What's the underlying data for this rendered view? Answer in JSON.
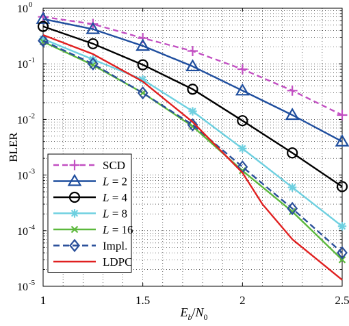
{
  "chart_data": {
    "type": "line",
    "xlabel": {
      "main": "E",
      "sub1": "b",
      "sep": "/N",
      "sub2": "0"
    },
    "ylabel": "BLER",
    "x_ticks": [
      "1",
      "1.5",
      "2",
      "2.5"
    ],
    "y_ticks": [
      {
        "base": "10",
        "exp": "0"
      },
      {
        "base": "10",
        "exp": "-1"
      },
      {
        "base": "10",
        "exp": "-2"
      },
      {
        "base": "10",
        "exp": "-3"
      },
      {
        "base": "10",
        "exp": "-4"
      },
      {
        "base": "10",
        "exp": "-5"
      }
    ],
    "xlim": [
      1,
      2.5
    ],
    "ylim": [
      1e-05,
      1
    ],
    "y_scale": "log",
    "grid": true,
    "legend_position": "bottom-left",
    "series": [
      {
        "name": "SCD",
        "color": "#c24fc2",
        "dash": "8,5",
        "marker": "plus",
        "x": [
          1,
          1.25,
          1.5,
          1.75,
          2,
          2.25,
          2.5
        ],
        "y": [
          0.7,
          0.52,
          0.29,
          0.17,
          0.08,
          0.033,
          0.012
        ]
      },
      {
        "name": "L = 2",
        "italic_part": "L",
        "rest": " = 2",
        "color": "#1f4e9e",
        "dash": "",
        "marker": "triangle",
        "x": [
          1,
          1.25,
          1.5,
          1.75,
          2,
          2.25,
          2.5
        ],
        "y": [
          0.64,
          0.42,
          0.21,
          0.09,
          0.033,
          0.012,
          0.004
        ]
      },
      {
        "name": "L = 4",
        "italic_part": "L",
        "rest": " = 4",
        "color": "#000000",
        "dash": "",
        "marker": "circle",
        "x": [
          1,
          1.25,
          1.5,
          1.75,
          2,
          2.25,
          2.5
        ],
        "y": [
          0.47,
          0.23,
          0.096,
          0.035,
          0.0095,
          0.0025,
          0.00062
        ]
      },
      {
        "name": "L = 8",
        "italic_part": "L",
        "rest": " = 8",
        "color": "#6ed0e0",
        "dash": "",
        "marker": "asterisk",
        "x": [
          1,
          1.25,
          1.5,
          1.75,
          2,
          2.25,
          2.5
        ],
        "y": [
          0.28,
          0.12,
          0.052,
          0.014,
          0.003,
          0.0006,
          0.00012
        ]
      },
      {
        "name": "L = 16",
        "italic_part": "L",
        "rest": " = 16",
        "color": "#5cb83c",
        "dash": "",
        "marker": "x",
        "x": [
          1,
          1.25,
          1.5,
          1.75,
          2,
          2.25,
          2.5
        ],
        "y": [
          0.25,
          0.095,
          0.03,
          0.0075,
          0.0012,
          0.00022,
          3e-05
        ]
      },
      {
        "name": "Impl.",
        "color": "#2a4f9a",
        "dash": "9,5",
        "marker": "diamond",
        "x": [
          1,
          1.25,
          1.5,
          1.75,
          2,
          2.25,
          2.5
        ],
        "y": [
          0.26,
          0.1,
          0.03,
          0.008,
          0.0014,
          0.00025,
          4e-05
        ]
      },
      {
        "name": "LDPC",
        "color": "#e02020",
        "dash": "",
        "marker": "none",
        "x": [
          1,
          1.25,
          1.5,
          1.75,
          2,
          2.1,
          2.25,
          2.5
        ],
        "y": [
          0.33,
          0.15,
          0.048,
          0.009,
          0.0011,
          0.0003,
          7e-05,
          1.3e-05
        ]
      }
    ]
  }
}
